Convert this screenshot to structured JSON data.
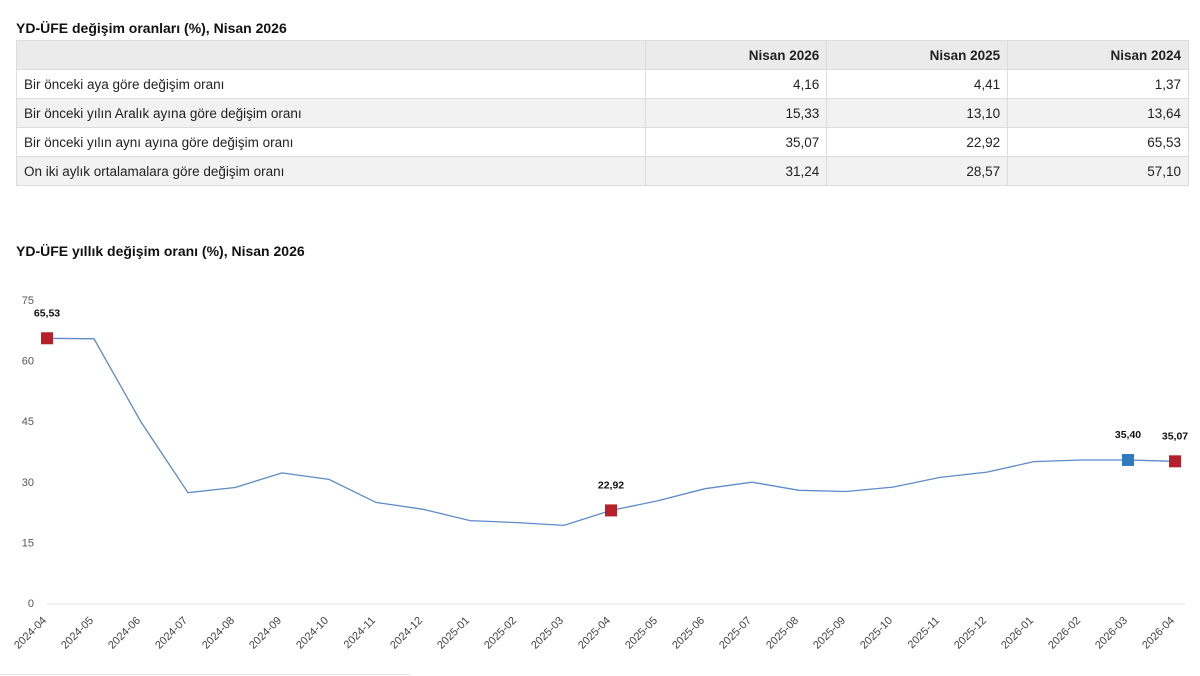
{
  "table": {
    "title": "YD-ÜFE değişim oranları (%), Nisan 2026",
    "headers": [
      "",
      "Nisan 2026",
      "Nisan 2025",
      "Nisan 2024"
    ],
    "rows": [
      {
        "label": "Bir önceki aya göre değişim oranı",
        "values": [
          "4,16",
          "4,41",
          "1,37"
        ]
      },
      {
        "label": "Bir önceki yılın Aralık ayına göre değişim oranı",
        "values": [
          "15,33",
          "13,10",
          "13,64"
        ]
      },
      {
        "label": "Bir önceki yılın aynı ayına göre değişim oranı",
        "values": [
          "35,07",
          "22,92",
          "65,53"
        ]
      },
      {
        "label": "On iki aylık ortalamalara göre değişim oranı",
        "values": [
          "31,24",
          "28,57",
          "57,10"
        ]
      }
    ]
  },
  "chart_data": {
    "type": "line",
    "title": "YD-ÜFE yıllık değişim oranı (%), Nisan 2026",
    "xlabel": "",
    "ylabel": "",
    "ylim": [
      0,
      75
    ],
    "yticks": [
      0,
      15,
      30,
      45,
      60,
      75
    ],
    "grid": false,
    "categories": [
      "2024-04",
      "2024-05",
      "2024-06",
      "2024-07",
      "2024-08",
      "2024-09",
      "2024-10",
      "2024-11",
      "2024-12",
      "2025-01",
      "2025-02",
      "2025-03",
      "2025-04",
      "2025-05",
      "2025-06",
      "2025-07",
      "2025-08",
      "2025-09",
      "2025-10",
      "2025-11",
      "2025-12",
      "2026-01",
      "2026-02",
      "2026-03",
      "2026-04"
    ],
    "series": [
      {
        "values": [
          65.53,
          65.4,
          44.8,
          27.3,
          28.6,
          32.2,
          30.6,
          24.9,
          23.2,
          20.4,
          19.9,
          19.2,
          22.92,
          25.3,
          28.3,
          29.9,
          27.9,
          27.6,
          28.7,
          31.1,
          32.4,
          35.0,
          35.4,
          35.4,
          35.07
        ],
        "color": "#5b8bc9"
      }
    ],
    "highlighted_points": [
      {
        "index": 0,
        "label": "65,53",
        "color": "#b5202a"
      },
      {
        "index": 12,
        "label": "22,92",
        "color": "#b5202a"
      },
      {
        "index": 23,
        "label": "35,40",
        "color": "#2e7bbd"
      },
      {
        "index": 24,
        "label": "35,07",
        "color": "#b5202a"
      }
    ]
  }
}
